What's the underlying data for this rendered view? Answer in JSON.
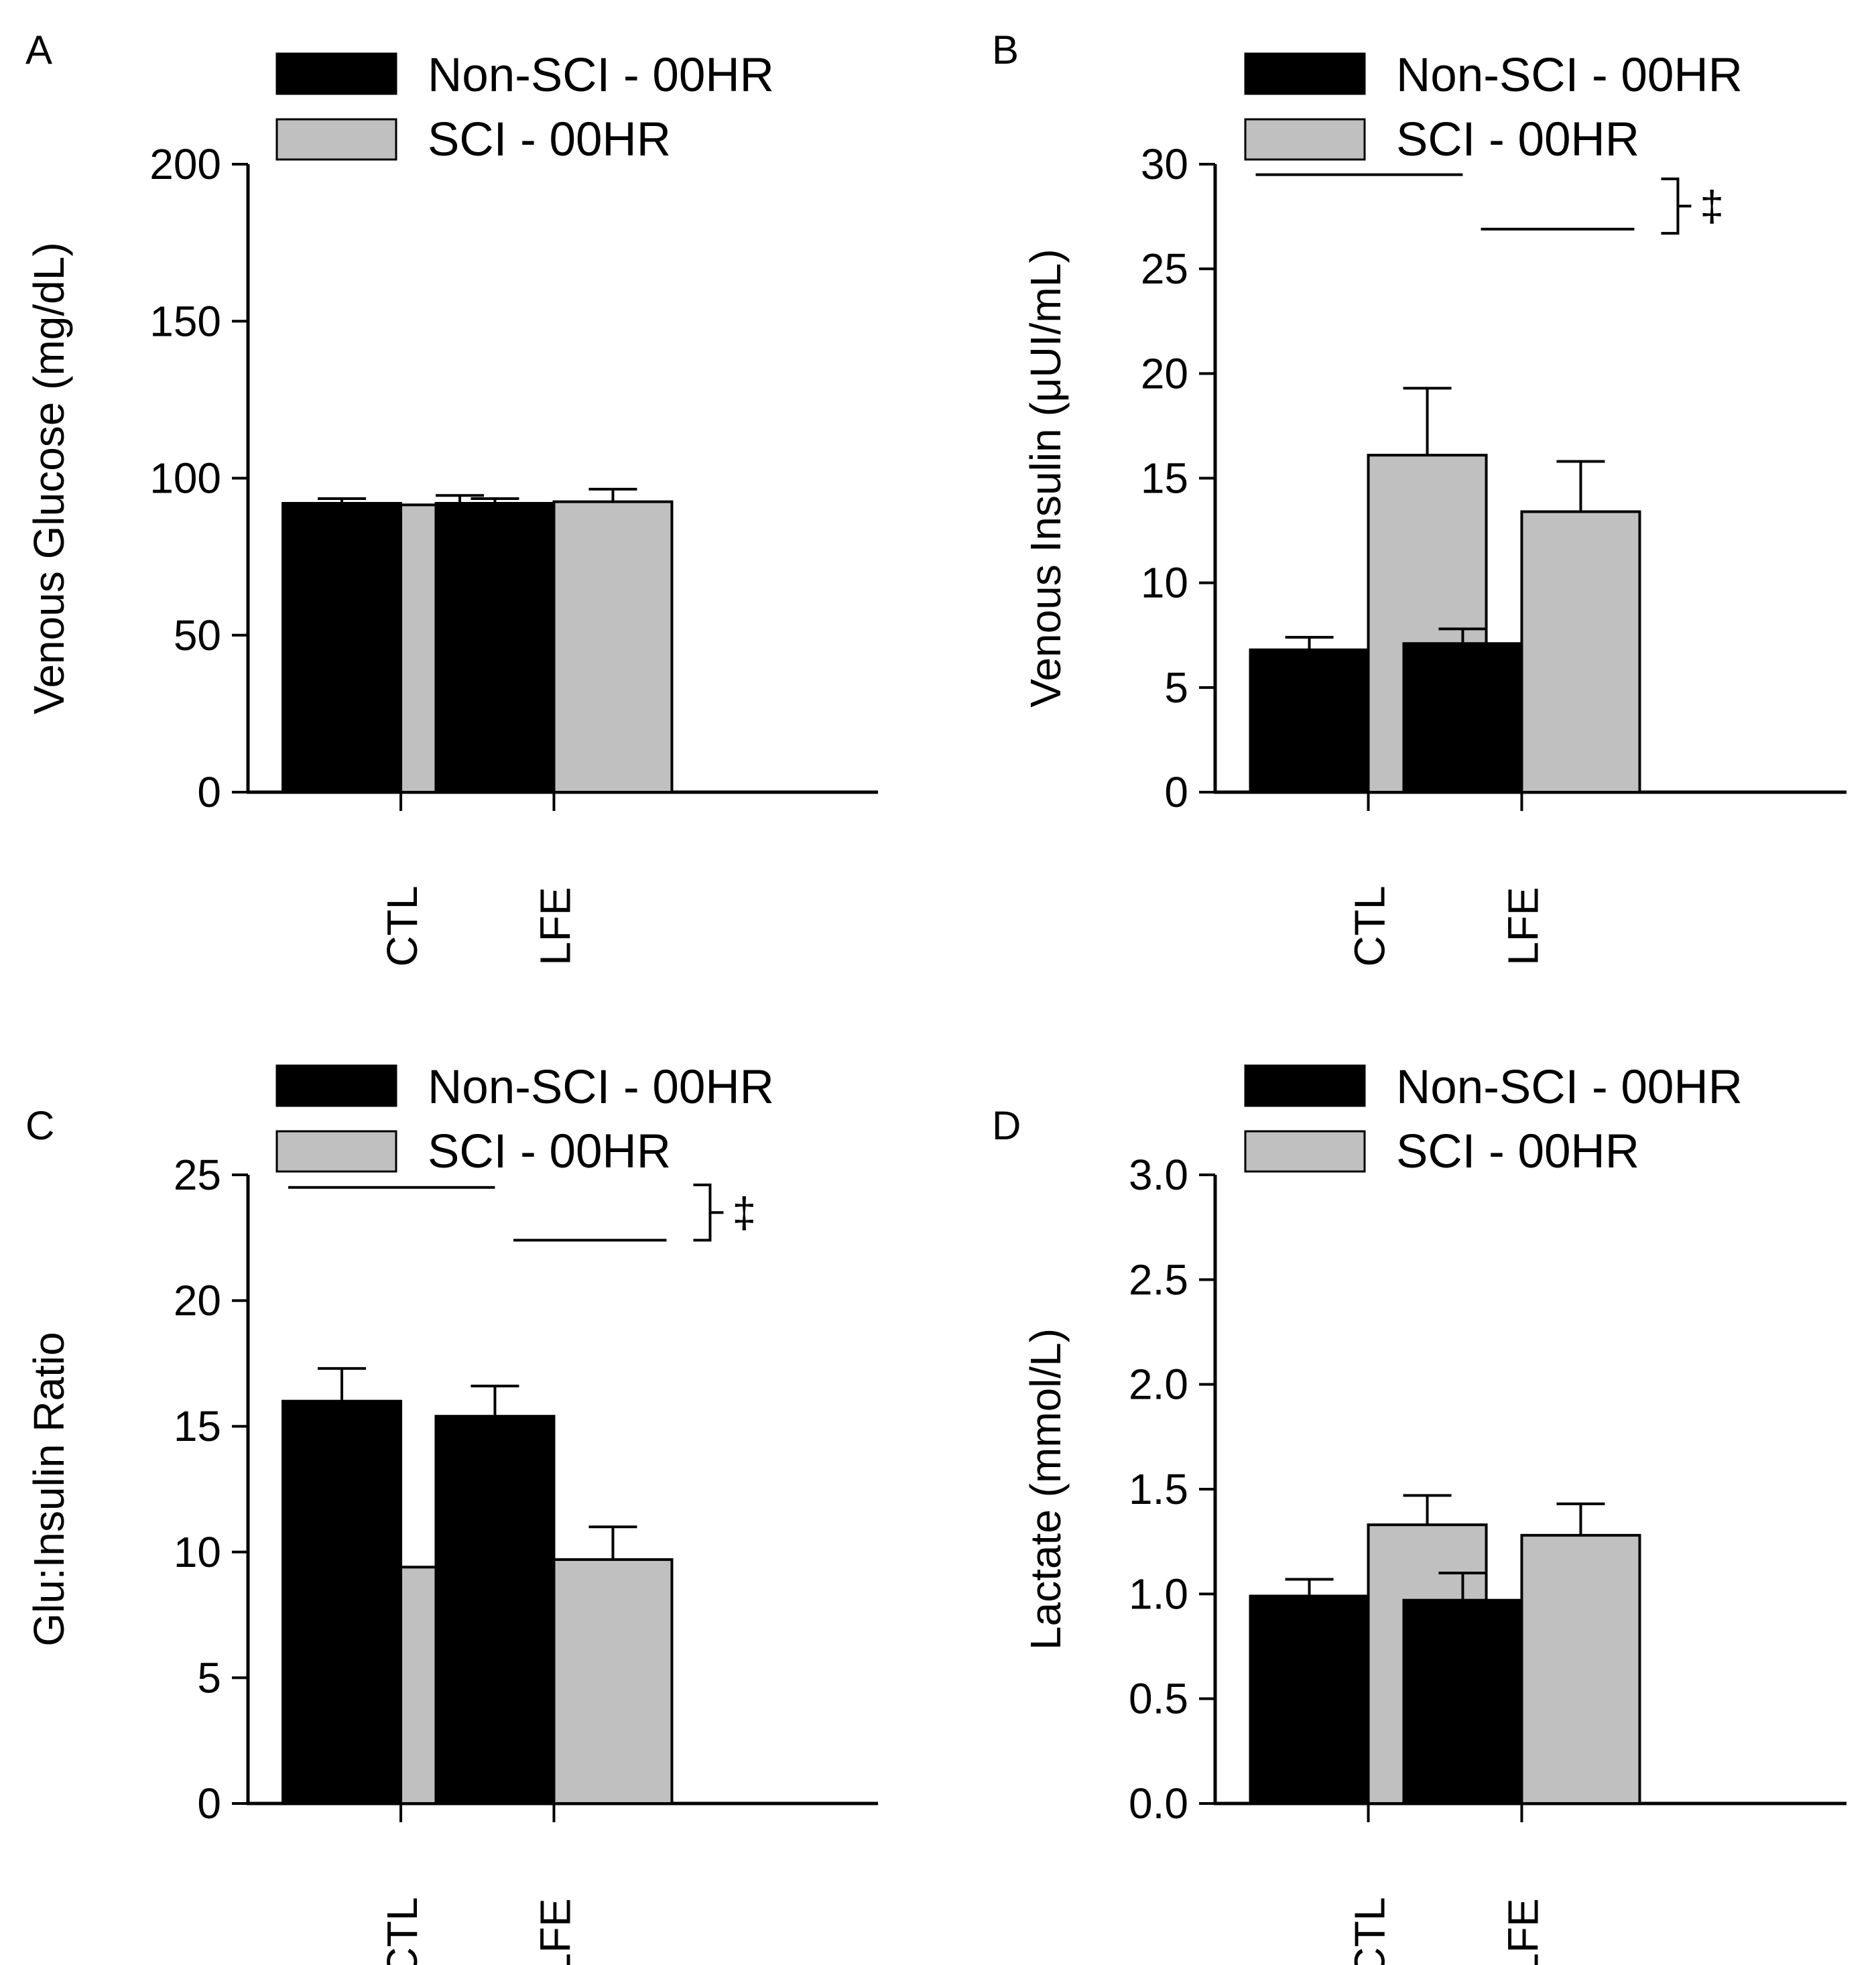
{
  "figure": {
    "legend": {
      "series_a": "Non-SCI - 00HR",
      "series_b": "SCI - 00HR"
    }
  },
  "colors": {
    "series_a": "#000000",
    "series_b": "#c0c0c0",
    "axis": "#000000"
  },
  "chart_data": [
    {
      "panel": "A",
      "type": "bar",
      "categories": [
        "CTL",
        "LFE"
      ],
      "series": [
        {
          "name": "Non-SCI - 00HR",
          "values": [
            92,
            92
          ],
          "errors": [
            1.5,
            1.5
          ]
        },
        {
          "name": "SCI - 00HR",
          "values": [
            91.5,
            92.5
          ],
          "errors": [
            3,
            4
          ]
        }
      ],
      "ylabel": "Venous Glucose (mg/dL)",
      "xlabel": "",
      "ylim": [
        0,
        200
      ],
      "yticks": [
        0,
        50,
        100,
        150,
        200
      ],
      "ytick_labels": [
        "0",
        "50",
        "100",
        "150",
        "200"
      ],
      "significance": []
    },
    {
      "panel": "B",
      "type": "bar",
      "categories": [
        "CTL",
        "LFE"
      ],
      "series": [
        {
          "name": "Non-SCI - 00HR",
          "values": [
            6.8,
            7.1
          ],
          "errors": [
            0.6,
            0.7
          ]
        },
        {
          "name": "SCI - 00HR",
          "values": [
            16.1,
            13.4
          ],
          "errors": [
            3.2,
            2.4
          ]
        }
      ],
      "ylabel": "Venous Insulin (μUI/mL)",
      "xlabel": "",
      "ylim": [
        0,
        30
      ],
      "yticks": [
        0,
        5,
        10,
        15,
        20,
        25,
        30
      ],
      "ytick_labels": [
        "0",
        "5",
        "10",
        "15",
        "20",
        "25",
        "30"
      ],
      "significance": [
        {
          "series_index": 0,
          "y": 29.5,
          "ybracket": 29.3
        },
        {
          "series_index": 1,
          "y": 26.9,
          "ybracket": 26.7
        }
      ],
      "significance_symbol": "‡"
    },
    {
      "panel": "C",
      "type": "bar",
      "categories": [
        "CTL",
        "LFE"
      ],
      "series": [
        {
          "name": "Non-SCI - 00HR",
          "values": [
            16.0,
            15.4
          ],
          "errors": [
            1.3,
            1.2
          ]
        },
        {
          "name": "SCI - 00HR",
          "values": [
            9.4,
            9.7
          ],
          "errors": [
            1.4,
            1.3
          ]
        }
      ],
      "ylabel": "Glu:Insulin Ratio",
      "xlabel": "",
      "ylim": [
        0,
        25
      ],
      "yticks": [
        0,
        5,
        10,
        15,
        20,
        25
      ],
      "ytick_labels": [
        "0",
        "5",
        "10",
        "15",
        "20",
        "25"
      ],
      "significance": [
        {
          "series_index": 0,
          "y": 24.5,
          "ybracket": 24.6
        },
        {
          "series_index": 1,
          "y": 22.4,
          "ybracket": 22.4
        }
      ],
      "significance_symbol": "‡"
    },
    {
      "panel": "D",
      "type": "bar",
      "categories": [
        "CTL",
        "LFE"
      ],
      "series": [
        {
          "name": "Non-SCI - 00HR",
          "values": [
            0.99,
            0.97
          ],
          "errors": [
            0.08,
            0.13
          ]
        },
        {
          "name": "SCI - 00HR",
          "values": [
            1.33,
            1.28
          ],
          "errors": [
            0.14,
            0.15
          ]
        }
      ],
      "ylabel": "Lactate (mmol/L)",
      "xlabel": "",
      "ylim": [
        0,
        3.0
      ],
      "yticks": [
        0,
        0.5,
        1.0,
        1.5,
        2.0,
        2.5,
        3.0
      ],
      "ytick_labels": [
        "0.0",
        "0.5",
        "1.0",
        "1.5",
        "2.0",
        "2.5",
        "3.0"
      ],
      "significance": []
    }
  ]
}
